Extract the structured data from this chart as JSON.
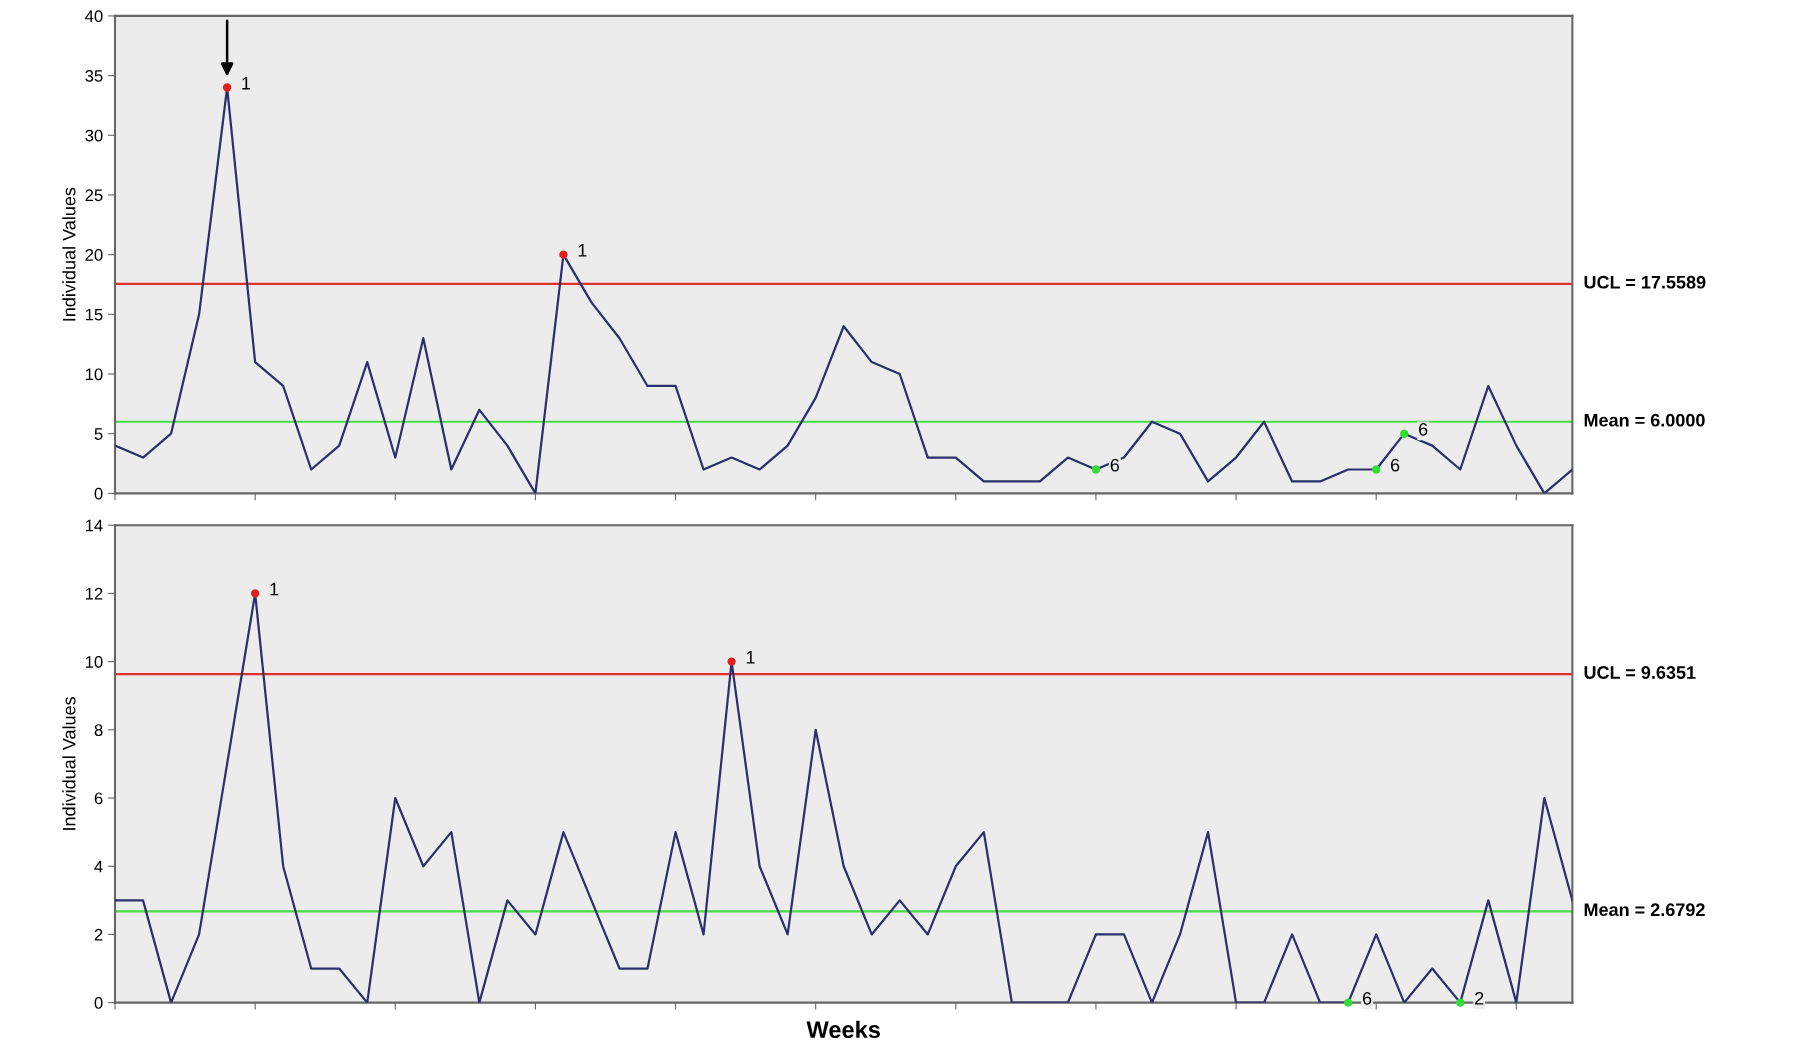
{
  "chart_data": [
    {
      "type": "line",
      "ylabel": "Individual Values",
      "categories": [
        null,
        null,
        null,
        null,
        null,
        null,
        null,
        null,
        null,
        null,
        null,
        null,
        null,
        null,
        null,
        null,
        null,
        null,
        null,
        null,
        null,
        null,
        null,
        null,
        null,
        null,
        null,
        null,
        null,
        null,
        null,
        null,
        null,
        null,
        null,
        null,
        null,
        null,
        null,
        null,
        null,
        null,
        null,
        null,
        null,
        null,
        null,
        null,
        null,
        null,
        null,
        null,
        null
      ],
      "series": [
        {
          "color": "#2b2f6b",
          "values": [
            4,
            3,
            5,
            15,
            34,
            11,
            9,
            2,
            4,
            11,
            3,
            13,
            2,
            7,
            4,
            0,
            20,
            16,
            13,
            9,
            9,
            2,
            3,
            2,
            4,
            8,
            14,
            11,
            10,
            3,
            3,
            1,
            1,
            1,
            3,
            2,
            3,
            6,
            5,
            1,
            3,
            6,
            1,
            1,
            2,
            2,
            5,
            4,
            2,
            9,
            4,
            0,
            2
          ],
          "colors": [
            null,
            null,
            null,
            null,
            "#e0201b",
            null,
            null,
            null,
            null,
            null,
            null,
            null,
            null,
            null,
            null,
            null,
            "#e0201b",
            null,
            null,
            null,
            null,
            null,
            null,
            null,
            null,
            null,
            null,
            null,
            null,
            null,
            null,
            null,
            null,
            null,
            null,
            "#33dd33",
            null,
            null,
            null,
            null,
            null,
            null,
            null,
            null,
            null,
            "#33dd33",
            "#33dd33",
            null,
            null,
            null,
            null,
            null,
            null
          ]
        }
      ],
      "ylim": [
        0,
        40
      ],
      "yticks": [
        0,
        5,
        10,
        15,
        20,
        25,
        30,
        35,
        40
      ],
      "tick_labels": "y",
      "annotations": [
        "1",
        "1",
        "6",
        "6",
        "6"
      ],
      "ref_lines": [
        {
          "axis": "y",
          "value": 17.5589,
          "label": "UCL = 17.5589",
          "color": "#e03030"
        },
        {
          "axis": "y",
          "value": 6.0,
          "label": "Mean = 6.0000",
          "color": "#44dd44"
        }
      ]
    },
    {
      "type": "line",
      "ylabel": "Individual Values",
      "xlabel": "Weeks",
      "categories": [
        null,
        null,
        null,
        null,
        null,
        null,
        null,
        null,
        null,
        null,
        null,
        null,
        null,
        null,
        null,
        null,
        null,
        null,
        null,
        null,
        null,
        null,
        null,
        null,
        null,
        null,
        null,
        null,
        null,
        null,
        null,
        null,
        null,
        null,
        null,
        null,
        null,
        null,
        null,
        null,
        null,
        null,
        null,
        null,
        null,
        null,
        null,
        null,
        null,
        null,
        null,
        null,
        null
      ],
      "series": [
        {
          "color": "#2b2f6b",
          "values": [
            3,
            3,
            0,
            2,
            7,
            12,
            4,
            1,
            1,
            0,
            6,
            4,
            5,
            0,
            3,
            2,
            5,
            3,
            1,
            1,
            5,
            2,
            10,
            4,
            2,
            8,
            4,
            2,
            3,
            2,
            4,
            5,
            0,
            0,
            0,
            2,
            2,
            0,
            2,
            5,
            0,
            0,
            2,
            0,
            0,
            2,
            0,
            1,
            0,
            3,
            0,
            6,
            3
          ],
          "colors": [
            null,
            null,
            null,
            null,
            null,
            "#e0201b",
            null,
            null,
            null,
            null,
            null,
            null,
            null,
            null,
            null,
            null,
            null,
            null,
            null,
            null,
            null,
            null,
            "#e0201b",
            null,
            null,
            null,
            null,
            null,
            null,
            null,
            null,
            null,
            null,
            null,
            null,
            null,
            null,
            null,
            null,
            null,
            null,
            null,
            null,
            null,
            "#33dd33",
            null,
            null,
            null,
            "#33dd33",
            null,
            null,
            null,
            null
          ]
        }
      ],
      "ylim": [
        0,
        14
      ],
      "yticks": [
        0,
        2,
        4,
        6,
        8,
        10,
        12,
        14
      ],
      "tick_labels": "y",
      "annotations": [
        "1",
        "1",
        "6",
        "2"
      ],
      "ref_lines": [
        {
          "axis": "y",
          "value": 9.6351,
          "label": "UCL = 9.6351",
          "color": "#e03030"
        },
        {
          "axis": "y",
          "value": 2.6792,
          "label": "Mean = 2.6792",
          "color": "#44dd44"
        }
      ]
    }
  ]
}
